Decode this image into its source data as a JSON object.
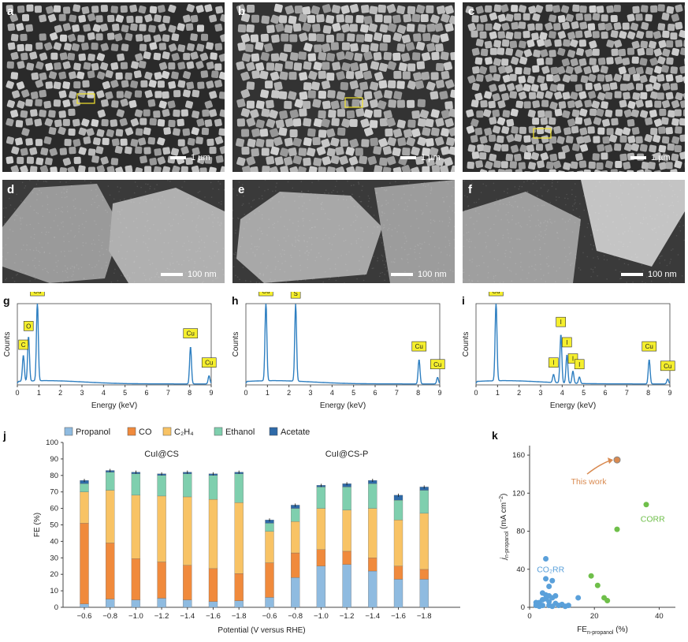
{
  "panels": {
    "a": {
      "letter": "a",
      "scale": "1 µm"
    },
    "b": {
      "letter": "b",
      "scale": "1 µm"
    },
    "c": {
      "letter": "c",
      "scale": "1 µm"
    },
    "d": {
      "letter": "d",
      "scale": "100 nm"
    },
    "e": {
      "letter": "e",
      "scale": "100 nm"
    },
    "f": {
      "letter": "f",
      "scale": "100 nm"
    }
  },
  "colors": {
    "propanol": "#8fbbe0",
    "co": "#f08a3c",
    "c2h4": "#f8c365",
    "ethanol": "#7fcfae",
    "acetate": "#2e6aa8",
    "eds_line": "#2e7fc1",
    "tag_fill": "#f5ef2d",
    "this_work": "#d98a50",
    "co2rr": "#5aa0da",
    "corr": "#6fbf4a"
  },
  "chart_data": [
    {
      "type": "line",
      "panel": "g",
      "xlabel": "Energy (keV)",
      "ylabel": "Counts",
      "xlim": [
        0,
        9
      ],
      "xticks": [
        0,
        1,
        2,
        3,
        4,
        5,
        6,
        7,
        8,
        9
      ],
      "peaks": [
        {
          "label": "C",
          "x": 0.28,
          "h": 0.32
        },
        {
          "label": "O",
          "x": 0.52,
          "h": 0.55
        },
        {
          "label": "Cu",
          "x": 0.93,
          "h": 0.98
        },
        {
          "label": "Cu",
          "x": 8.04,
          "h": 0.46
        },
        {
          "label": "Cu",
          "x": 8.9,
          "h": 0.1
        }
      ]
    },
    {
      "type": "line",
      "panel": "h",
      "xlabel": "Energy (keV)",
      "ylabel": "Counts",
      "xlim": [
        0,
        9
      ],
      "xticks": [
        0,
        1,
        2,
        3,
        4,
        5,
        6,
        7,
        8,
        9
      ],
      "peaks": [
        {
          "label": "Cu",
          "x": 0.93,
          "h": 0.98
        },
        {
          "label": "S",
          "x": 2.31,
          "h": 0.95
        },
        {
          "label": "Cu",
          "x": 8.04,
          "h": 0.3
        },
        {
          "label": "Cu",
          "x": 8.9,
          "h": 0.08
        }
      ]
    },
    {
      "type": "line",
      "panel": "i",
      "xlabel": "Energy (keV)",
      "ylabel": "Counts",
      "xlim": [
        0,
        9
      ],
      "xticks": [
        0,
        1,
        2,
        3,
        4,
        5,
        6,
        7,
        8,
        9
      ],
      "peaks": [
        {
          "label": "Cu",
          "x": 0.93,
          "h": 0.98
        },
        {
          "label": "I",
          "x": 3.6,
          "h": 0.1
        },
        {
          "label": "I",
          "x": 3.94,
          "h": 0.6
        },
        {
          "label": "I",
          "x": 4.22,
          "h": 0.35
        },
        {
          "label": "I",
          "x": 4.5,
          "h": 0.15
        },
        {
          "label": "I",
          "x": 4.8,
          "h": 0.08
        },
        {
          "label": "Cu",
          "x": 8.04,
          "h": 0.3
        },
        {
          "label": "Cu",
          "x": 8.9,
          "h": 0.06
        }
      ]
    },
    {
      "type": "bar",
      "panel": "j",
      "stacked": true,
      "xlabel": "Potential (V versus RHE)",
      "ylabel": "FE (%)",
      "ylim": [
        0,
        100
      ],
      "yticks": [
        0,
        10,
        20,
        30,
        40,
        50,
        60,
        70,
        80,
        90,
        100
      ],
      "legend": [
        "Propanol",
        "CO",
        "C₂H₄",
        "Ethanol",
        "Acetate"
      ],
      "legend_position": "top",
      "groups": [
        {
          "name": "CuI@CS",
          "categories": [
            "−0.6",
            "−0.8",
            "−1.0",
            "−1.2",
            "−1.4",
            "−1.6",
            "−1.8"
          ],
          "propanol": [
            2,
            5,
            4.5,
            5.5,
            4.5,
            3.5,
            4
          ],
          "co": [
            49,
            34,
            25,
            22,
            21,
            20,
            16.5
          ],
          "c2h4": [
            19,
            32,
            38.5,
            40,
            41.5,
            42,
            43
          ],
          "ethanol": [
            5,
            11,
            13,
            12.5,
            14,
            14.5,
            17.5
          ],
          "acetate": [
            2,
            1,
            1,
            1,
            1,
            1,
            1
          ]
        },
        {
          "name": "CuI@CS-P",
          "categories": [
            "−0.6",
            "−0.8",
            "−1.0",
            "−1.2",
            "−1.4",
            "−1.6",
            "−1.8"
          ],
          "propanol": [
            6,
            18,
            25,
            26,
            22,
            17,
            17
          ],
          "co": [
            21,
            15,
            10,
            8,
            8,
            8,
            6
          ],
          "c2h4": [
            19,
            19,
            25,
            25,
            30,
            28,
            34
          ],
          "ethanol": [
            5,
            8,
            13,
            14,
            15,
            12,
            14
          ],
          "acetate": [
            2,
            2,
            1,
            2,
            2,
            3,
            2
          ]
        }
      ]
    },
    {
      "type": "scatter",
      "panel": "k",
      "xlabel_main": "FE",
      "xlabel_sub": "n-propanol",
      "xlabel_unit": " (%)",
      "ylabel_main": "j",
      "ylabel_sub": "n-propanol",
      "ylabel_unit": " (mA cm",
      "xlim": [
        0,
        45
      ],
      "ylim": [
        0,
        170
      ],
      "xticks": [
        0,
        20,
        40
      ],
      "yticks": [
        0,
        40,
        80,
        120,
        160
      ],
      "annotations": [
        "This work",
        "CORR",
        "CO₂RR"
      ],
      "series": [
        {
          "name": "This work",
          "points": [
            [
              27,
              155
            ]
          ]
        },
        {
          "name": "CORR",
          "points": [
            [
              36,
              108
            ],
            [
              27,
              82
            ],
            [
              19,
              33
            ],
            [
              21,
              23
            ],
            [
              23,
              10
            ],
            [
              24,
              7
            ]
          ]
        },
        {
          "name": "CO₂RR",
          "points": [
            [
              5,
              51
            ],
            [
              5,
              30
            ],
            [
              7,
              28
            ],
            [
              6,
              22
            ],
            [
              4,
              15
            ],
            [
              5,
              13
            ],
            [
              6,
              12
            ],
            [
              7,
              10
            ],
            [
              8,
              12
            ],
            [
              4,
              8
            ],
            [
              5,
              9
            ],
            [
              6,
              6
            ],
            [
              3,
              5
            ],
            [
              2,
              5
            ],
            [
              8,
              4
            ],
            [
              10,
              3
            ],
            [
              4,
              2
            ],
            [
              6,
              2
            ],
            [
              9,
              2
            ],
            [
              12,
              2
            ],
            [
              15,
              10
            ],
            [
              3,
              1
            ],
            [
              7,
              1
            ],
            [
              11,
              1
            ],
            [
              2,
              2
            ]
          ]
        }
      ]
    }
  ]
}
